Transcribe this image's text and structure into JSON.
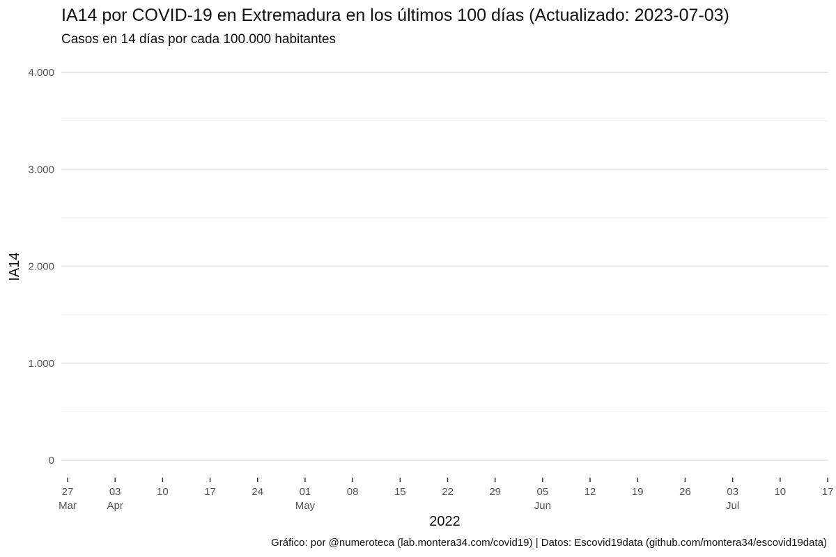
{
  "chart_data": {
    "type": "line",
    "title": "IA14 por COVID-19 en Extremadura en los últimos 100 días (Actualizado: 2023-07-03)",
    "subtitle": "Casos en 14 días por cada 100.000 habitantes",
    "ylabel": "IA14",
    "xlabel": "2022",
    "caption": "Gráfico: por @numeroteca (lab.montera34.com/covid19) | Datos: Escovid19data (github.com/montera34/escovid19data)",
    "ylim": [
      0,
      4000
    ],
    "y_ticks": [
      {
        "value": 0,
        "label": "0"
      },
      {
        "value": 1000,
        "label": "1.000"
      },
      {
        "value": 2000,
        "label": "2.000"
      },
      {
        "value": 3000,
        "label": "3.000"
      },
      {
        "value": 4000,
        "label": "4.000"
      }
    ],
    "y_minor_ticks": [
      500,
      1500,
      2500,
      3500
    ],
    "xlim": [
      "2022-03-27",
      "2022-07-17"
    ],
    "x_ticks": [
      {
        "date": "2022-03-27",
        "day": "27",
        "month": "Mar"
      },
      {
        "date": "2022-04-03",
        "day": "03",
        "month": "Apr"
      },
      {
        "date": "2022-04-10",
        "day": "10",
        "month": ""
      },
      {
        "date": "2022-04-17",
        "day": "17",
        "month": ""
      },
      {
        "date": "2022-04-24",
        "day": "24",
        "month": ""
      },
      {
        "date": "2022-05-01",
        "day": "01",
        "month": "May"
      },
      {
        "date": "2022-05-08",
        "day": "08",
        "month": ""
      },
      {
        "date": "2022-05-15",
        "day": "15",
        "month": ""
      },
      {
        "date": "2022-05-22",
        "day": "22",
        "month": ""
      },
      {
        "date": "2022-05-29",
        "day": "29",
        "month": ""
      },
      {
        "date": "2022-06-05",
        "day": "05",
        "month": "Jun"
      },
      {
        "date": "2022-06-12",
        "day": "12",
        "month": ""
      },
      {
        "date": "2022-06-19",
        "day": "19",
        "month": ""
      },
      {
        "date": "2022-06-26",
        "day": "26",
        "month": ""
      },
      {
        "date": "2022-07-03",
        "day": "03",
        "month": "Jul"
      },
      {
        "date": "2022-07-10",
        "day": "10",
        "month": ""
      },
      {
        "date": "2022-07-17",
        "day": "17",
        "month": ""
      }
    ],
    "series": [],
    "grid": true,
    "legend": "none"
  }
}
